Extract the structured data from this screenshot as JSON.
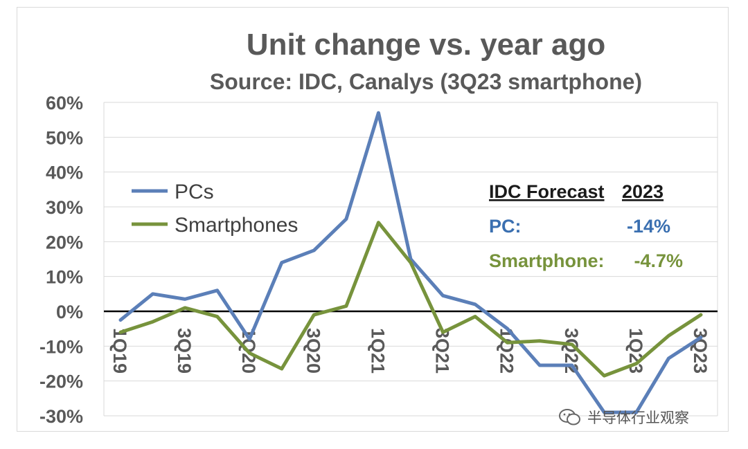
{
  "chart_data": {
    "type": "line",
    "title": "Unit change vs. year ago",
    "subtitle": "Source: IDC, Canalys (3Q23 smartphone)",
    "x": [
      "1Q19",
      "2Q19",
      "3Q19",
      "4Q19",
      "1Q20",
      "2Q20",
      "3Q20",
      "4Q20",
      "1Q21",
      "2Q21",
      "3Q21",
      "4Q21",
      "1Q22",
      "2Q22",
      "3Q22",
      "4Q22",
      "1Q23",
      "2Q23",
      "3Q23"
    ],
    "x_tick_labels": [
      "1Q19",
      "3Q19",
      "1Q20",
      "3Q20",
      "1Q21",
      "3Q21",
      "1Q22",
      "3Q22",
      "1Q23",
      "3Q23"
    ],
    "ylim": [
      -30,
      60
    ],
    "y_ticks": [
      60,
      50,
      40,
      30,
      20,
      10,
      0,
      -10,
      -20,
      -30
    ],
    "y_tick_format": "%",
    "grid": true,
    "legend_position": "upper-left",
    "series": [
      {
        "name": "PCs",
        "color": "#5b7fb8",
        "values": [
          -2.5,
          5,
          3.5,
          6,
          -8,
          14,
          17.5,
          26.5,
          57,
          15,
          4.5,
          2,
          -5,
          -15.5,
          -15.5,
          -29,
          -29,
          -13.5,
          -7.5
        ]
      },
      {
        "name": "Smartphones",
        "color": "#77933c",
        "values": [
          -6,
          -3,
          1,
          -1.5,
          -12,
          -16.5,
          -1,
          1.5,
          25.5,
          14,
          -6,
          -1.5,
          -9,
          -8.5,
          -9.5,
          -18.5,
          -15,
          -7,
          -1
        ]
      }
    ],
    "annotation_box": {
      "header_left": "IDC Forecast",
      "header_right": "2023",
      "rows": [
        {
          "label": "PC:",
          "value": "-14%",
          "color": "#3a6fb0"
        },
        {
          "label": "Smartphone:",
          "value": "-4.7%",
          "color": "#77933c"
        }
      ]
    }
  },
  "watermark": {
    "text": "半导体行业观察"
  }
}
